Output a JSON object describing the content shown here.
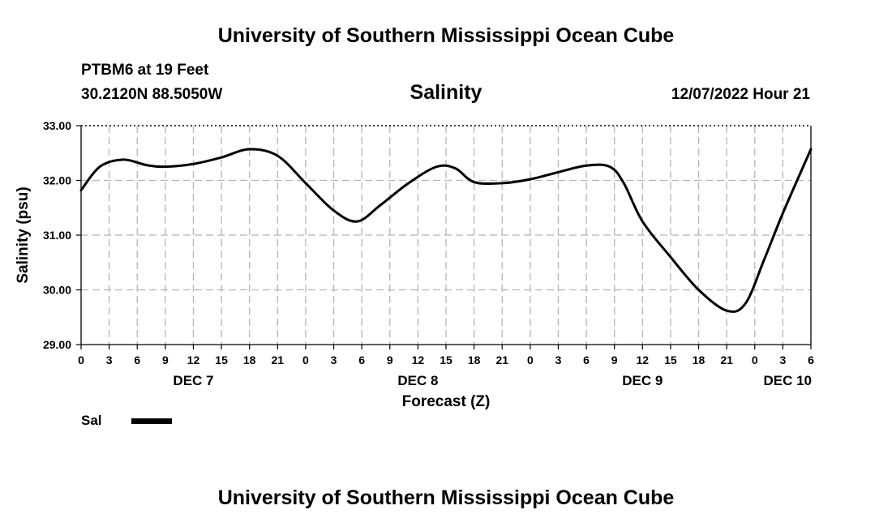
{
  "header": {
    "title_top": "University of Southern Mississippi Ocean Cube",
    "title_bottom": "University of Southern Mississippi Ocean Cube",
    "station": "PTBM6 at 19 Feet",
    "coords": "30.2120N  88.5050W",
    "datetime": "12/07/2022 Hour 21"
  },
  "legend": {
    "label": "Sal",
    "color": "#000000"
  },
  "chart_data": {
    "type": "line",
    "title": "Salinity",
    "xlabel": "Forecast (Z)",
    "ylabel": "Salinity (psu)",
    "ylim": [
      29.0,
      33.0
    ],
    "yticks": [
      "29.00",
      "30.00",
      "31.00",
      "32.00",
      "33.00"
    ],
    "xlim": [
      0,
      78
    ],
    "xtick_step": 3,
    "xtick_labels": [
      "0",
      "3",
      "6",
      "9",
      "12",
      "15",
      "18",
      "21",
      "0",
      "3",
      "6",
      "9",
      "12",
      "15",
      "18",
      "21",
      "0",
      "3",
      "6",
      "9",
      "12",
      "15",
      "18",
      "21",
      "0",
      "3",
      "6"
    ],
    "day_labels": [
      {
        "label": "DEC 7",
        "hour": 12
      },
      {
        "label": "DEC 8",
        "hour": 36
      },
      {
        "label": "DEC 9",
        "hour": 60
      },
      {
        "label": "DEC 10",
        "hour": 78
      }
    ],
    "grid": true,
    "series": [
      {
        "name": "Sal",
        "x": [
          0,
          2,
          4.5,
          7,
          9,
          12,
          15,
          18,
          21,
          24,
          27,
          29.5,
          32,
          35,
          38,
          40,
          42,
          45,
          48,
          51,
          54,
          56.5,
          58,
          60,
          63,
          66,
          69,
          71,
          73,
          75,
          78
        ],
        "y": [
          31.82,
          32.25,
          32.38,
          32.28,
          32.25,
          32.3,
          32.42,
          32.57,
          32.45,
          31.95,
          31.45,
          31.25,
          31.55,
          31.95,
          32.25,
          32.22,
          31.97,
          31.95,
          32.02,
          32.15,
          32.27,
          32.25,
          31.95,
          31.25,
          30.6,
          30.0,
          29.62,
          29.75,
          30.55,
          31.4,
          32.57
        ]
      }
    ]
  }
}
